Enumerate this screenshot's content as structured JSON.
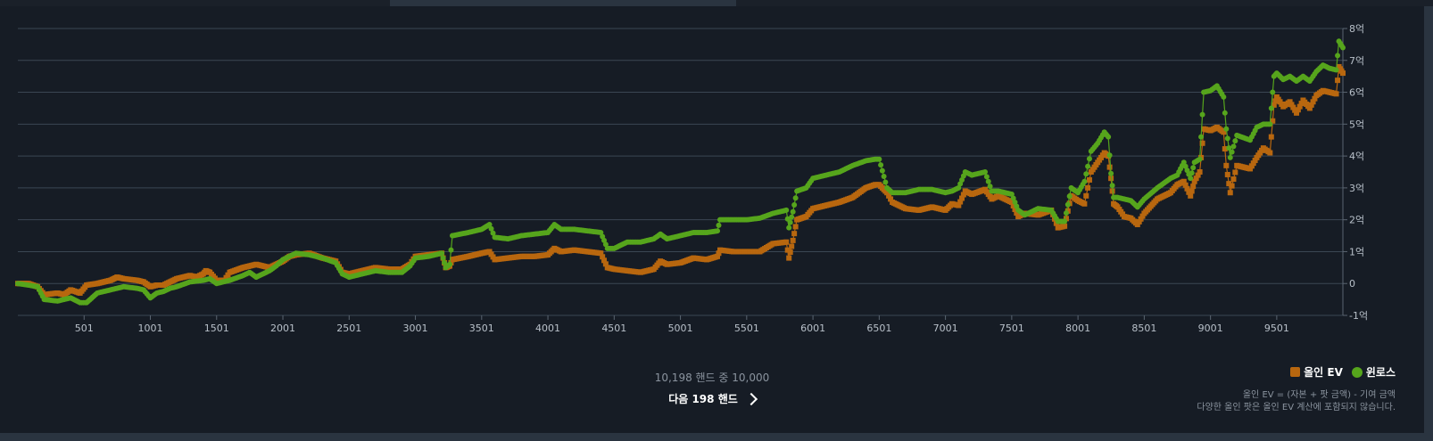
{
  "chart_data": {
    "type": "scatter",
    "x_ticks": [
      501,
      1001,
      1501,
      2001,
      2501,
      3001,
      3501,
      4001,
      4501,
      5001,
      5501,
      6001,
      6501,
      7001,
      7501,
      8001,
      8501,
      9001,
      9501
    ],
    "x_tick_labels": [
      "501",
      "1001",
      "1501",
      "2001",
      "2501",
      "3001",
      "3501",
      "4001",
      "4501",
      "5001",
      "5501",
      "6001",
      "6501",
      "7001",
      "7501",
      "8001",
      "8501",
      "9001",
      "9501"
    ],
    "xlim": [
      1,
      10000
    ],
    "y_ticks": [
      -1,
      0,
      1,
      2,
      3,
      4,
      5,
      6,
      7,
      8
    ],
    "y_tick_labels": [
      "-1억",
      "0",
      "1억",
      "2억",
      "3억",
      "4억",
      "5억",
      "6억",
      "7억",
      "8억"
    ],
    "ylim": [
      -1,
      8
    ],
    "grid": true,
    "legend_position": "bottom-right",
    "series": [
      {
        "name": "올인 EV",
        "marker": "square",
        "color": "#b8670f",
        "points": [
          [
            1,
            0
          ],
          [
            80,
            0
          ],
          [
            150,
            -0.1
          ],
          [
            200,
            -0.35
          ],
          [
            300,
            -0.3
          ],
          [
            350,
            -0.35
          ],
          [
            400,
            -0.2
          ],
          [
            470,
            -0.3
          ],
          [
            520,
            -0.05
          ],
          [
            600,
            0
          ],
          [
            700,
            0.1
          ],
          [
            750,
            0.2
          ],
          [
            800,
            0.15
          ],
          [
            900,
            0.1
          ],
          [
            950,
            0.05
          ],
          [
            1001,
            -0.1
          ],
          [
            1050,
            -0.05
          ],
          [
            1100,
            -0.05
          ],
          [
            1150,
            0.05
          ],
          [
            1200,
            0.15
          ],
          [
            1300,
            0.25
          ],
          [
            1350,
            0.2
          ],
          [
            1400,
            0.3
          ],
          [
            1420,
            0.4
          ],
          [
            1450,
            0.35
          ],
          [
            1501,
            0.1
          ],
          [
            1560,
            0.1
          ],
          [
            1600,
            0.35
          ],
          [
            1700,
            0.5
          ],
          [
            1800,
            0.6
          ],
          [
            1900,
            0.5
          ],
          [
            1950,
            0.6
          ],
          [
            2001,
            0.7
          ],
          [
            2050,
            0.85
          ],
          [
            2100,
            0.9
          ],
          [
            2200,
            0.95
          ],
          [
            2300,
            0.8
          ],
          [
            2400,
            0.7
          ],
          [
            2450,
            0.35
          ],
          [
            2501,
            0.3
          ],
          [
            2600,
            0.4
          ],
          [
            2700,
            0.5
          ],
          [
            2800,
            0.45
          ],
          [
            2900,
            0.45
          ],
          [
            2960,
            0.6
          ],
          [
            3001,
            0.85
          ],
          [
            3100,
            0.9
          ],
          [
            3200,
            0.95
          ],
          [
            3230,
            0.5
          ],
          [
            3260,
            0.55
          ],
          [
            3280,
            0.75
          ],
          [
            3400,
            0.85
          ],
          [
            3501,
            0.95
          ],
          [
            3560,
            1
          ],
          [
            3600,
            0.75
          ],
          [
            3700,
            0.8
          ],
          [
            3800,
            0.85
          ],
          [
            3900,
            0.85
          ],
          [
            4001,
            0.9
          ],
          [
            4050,
            1.1
          ],
          [
            4100,
            1
          ],
          [
            4200,
            1.05
          ],
          [
            4300,
            1.0
          ],
          [
            4400,
            0.95
          ],
          [
            4450,
            0.5
          ],
          [
            4501,
            0.45
          ],
          [
            4600,
            0.4
          ],
          [
            4700,
            0.35
          ],
          [
            4800,
            0.45
          ],
          [
            4850,
            0.7
          ],
          [
            4900,
            0.6
          ],
          [
            5001,
            0.65
          ],
          [
            5100,
            0.8
          ],
          [
            5200,
            0.75
          ],
          [
            5280,
            0.85
          ],
          [
            5300,
            1.05
          ],
          [
            5400,
            1.0
          ],
          [
            5501,
            1.0
          ],
          [
            5600,
            1.0
          ],
          [
            5700,
            1.25
          ],
          [
            5800,
            1.3
          ],
          [
            5820,
            0.8
          ],
          [
            5850,
            1.35
          ],
          [
            5880,
            2.0
          ],
          [
            5950,
            2.1
          ],
          [
            6001,
            2.35
          ],
          [
            6100,
            2.45
          ],
          [
            6200,
            2.55
          ],
          [
            6300,
            2.7
          ],
          [
            6400,
            3.0
          ],
          [
            6470,
            3.1
          ],
          [
            6501,
            3.1
          ],
          [
            6560,
            2.85
          ],
          [
            6600,
            2.55
          ],
          [
            6700,
            2.35
          ],
          [
            6800,
            2.3
          ],
          [
            6900,
            2.4
          ],
          [
            7001,
            2.3
          ],
          [
            7050,
            2.5
          ],
          [
            7100,
            2.45
          ],
          [
            7150,
            2.9
          ],
          [
            7200,
            2.8
          ],
          [
            7300,
            2.95
          ],
          [
            7350,
            2.65
          ],
          [
            7400,
            2.75
          ],
          [
            7501,
            2.55
          ],
          [
            7550,
            2.1
          ],
          [
            7600,
            2.2
          ],
          [
            7700,
            2.15
          ],
          [
            7800,
            2.3
          ],
          [
            7850,
            1.75
          ],
          [
            7900,
            1.8
          ],
          [
            7950,
            2.75
          ],
          [
            8001,
            2.6
          ],
          [
            8050,
            2.5
          ],
          [
            8100,
            3.5
          ],
          [
            8150,
            3.8
          ],
          [
            8200,
            4.1
          ],
          [
            8230,
            4.0
          ],
          [
            8250,
            3.3
          ],
          [
            8270,
            2.5
          ],
          [
            8300,
            2.4
          ],
          [
            8350,
            2.1
          ],
          [
            8400,
            2.05
          ],
          [
            8450,
            1.85
          ],
          [
            8501,
            2.2
          ],
          [
            8600,
            2.65
          ],
          [
            8700,
            2.85
          ],
          [
            8750,
            3.1
          ],
          [
            8800,
            3.2
          ],
          [
            8850,
            2.75
          ],
          [
            8880,
            3.2
          ],
          [
            8920,
            3.5
          ],
          [
            8950,
            4.85
          ],
          [
            9001,
            4.8
          ],
          [
            9050,
            4.9
          ],
          [
            9100,
            4.75
          ],
          [
            9120,
            3.7
          ],
          [
            9150,
            2.85
          ],
          [
            9200,
            3.7
          ],
          [
            9300,
            3.6
          ],
          [
            9350,
            3.95
          ],
          [
            9400,
            4.25
          ],
          [
            9450,
            4.1
          ],
          [
            9480,
            5.6
          ],
          [
            9501,
            5.85
          ],
          [
            9550,
            5.55
          ],
          [
            9600,
            5.7
          ],
          [
            9650,
            5.35
          ],
          [
            9700,
            5.75
          ],
          [
            9750,
            5.5
          ],
          [
            9800,
            5.9
          ],
          [
            9850,
            6.05
          ],
          [
            9900,
            6.0
          ],
          [
            9950,
            5.95
          ],
          [
            9970,
            6.8
          ],
          [
            10000,
            6.6
          ]
        ]
      },
      {
        "name": "윈로스",
        "marker": "circle",
        "color": "#56a51c",
        "points": [
          [
            1,
            0
          ],
          [
            80,
            -0.05
          ],
          [
            150,
            -0.1
          ],
          [
            200,
            -0.5
          ],
          [
            300,
            -0.55
          ],
          [
            400,
            -0.45
          ],
          [
            470,
            -0.6
          ],
          [
            520,
            -0.6
          ],
          [
            600,
            -0.3
          ],
          [
            700,
            -0.2
          ],
          [
            800,
            -0.1
          ],
          [
            900,
            -0.15
          ],
          [
            950,
            -0.2
          ],
          [
            1001,
            -0.45
          ],
          [
            1050,
            -0.3
          ],
          [
            1100,
            -0.25
          ],
          [
            1150,
            -0.15
          ],
          [
            1200,
            -0.1
          ],
          [
            1300,
            0.05
          ],
          [
            1400,
            0.1
          ],
          [
            1450,
            0.15
          ],
          [
            1501,
            0.0
          ],
          [
            1600,
            0.1
          ],
          [
            1700,
            0.25
          ],
          [
            1750,
            0.35
          ],
          [
            1800,
            0.2
          ],
          [
            1900,
            0.4
          ],
          [
            1950,
            0.55
          ],
          [
            2001,
            0.75
          ],
          [
            2050,
            0.85
          ],
          [
            2100,
            0.95
          ],
          [
            2200,
            0.9
          ],
          [
            2300,
            0.8
          ],
          [
            2400,
            0.65
          ],
          [
            2450,
            0.3
          ],
          [
            2501,
            0.2
          ],
          [
            2600,
            0.3
          ],
          [
            2700,
            0.4
          ],
          [
            2800,
            0.35
          ],
          [
            2900,
            0.35
          ],
          [
            2960,
            0.55
          ],
          [
            3001,
            0.8
          ],
          [
            3100,
            0.85
          ],
          [
            3200,
            0.95
          ],
          [
            3230,
            0.5
          ],
          [
            3260,
            0.6
          ],
          [
            3280,
            1.5
          ],
          [
            3400,
            1.6
          ],
          [
            3501,
            1.7
          ],
          [
            3560,
            1.85
          ],
          [
            3600,
            1.45
          ],
          [
            3700,
            1.4
          ],
          [
            3800,
            1.5
          ],
          [
            3900,
            1.55
          ],
          [
            4001,
            1.6
          ],
          [
            4050,
            1.85
          ],
          [
            4100,
            1.7
          ],
          [
            4200,
            1.7
          ],
          [
            4300,
            1.65
          ],
          [
            4400,
            1.6
          ],
          [
            4450,
            1.1
          ],
          [
            4501,
            1.1
          ],
          [
            4600,
            1.3
          ],
          [
            4700,
            1.3
          ],
          [
            4800,
            1.4
          ],
          [
            4850,
            1.55
          ],
          [
            4900,
            1.4
          ],
          [
            5001,
            1.5
          ],
          [
            5100,
            1.6
          ],
          [
            5200,
            1.6
          ],
          [
            5280,
            1.65
          ],
          [
            5300,
            2.0
          ],
          [
            5400,
            2.0
          ],
          [
            5501,
            2.0
          ],
          [
            5600,
            2.05
          ],
          [
            5700,
            2.2
          ],
          [
            5800,
            2.3
          ],
          [
            5820,
            1.75
          ],
          [
            5850,
            2.25
          ],
          [
            5880,
            2.9
          ],
          [
            5950,
            3.0
          ],
          [
            6001,
            3.3
          ],
          [
            6100,
            3.4
          ],
          [
            6200,
            3.5
          ],
          [
            6300,
            3.7
          ],
          [
            6400,
            3.85
          ],
          [
            6470,
            3.9
          ],
          [
            6501,
            3.9
          ],
          [
            6560,
            3.0
          ],
          [
            6600,
            2.85
          ],
          [
            6700,
            2.85
          ],
          [
            6800,
            2.95
          ],
          [
            6900,
            2.95
          ],
          [
            7001,
            2.85
          ],
          [
            7050,
            2.9
          ],
          [
            7100,
            3.0
          ],
          [
            7150,
            3.5
          ],
          [
            7200,
            3.4
          ],
          [
            7300,
            3.5
          ],
          [
            7350,
            2.9
          ],
          [
            7400,
            2.9
          ],
          [
            7501,
            2.8
          ],
          [
            7550,
            2.3
          ],
          [
            7600,
            2.15
          ],
          [
            7700,
            2.35
          ],
          [
            7800,
            2.3
          ],
          [
            7850,
            1.95
          ],
          [
            7900,
            1.95
          ],
          [
            7950,
            3.0
          ],
          [
            8001,
            2.85
          ],
          [
            8050,
            3.2
          ],
          [
            8100,
            4.15
          ],
          [
            8150,
            4.4
          ],
          [
            8200,
            4.75
          ],
          [
            8230,
            4.6
          ],
          [
            8250,
            3.45
          ],
          [
            8270,
            2.7
          ],
          [
            8300,
            2.7
          ],
          [
            8350,
            2.65
          ],
          [
            8400,
            2.6
          ],
          [
            8450,
            2.4
          ],
          [
            8501,
            2.65
          ],
          [
            8600,
            3.0
          ],
          [
            8700,
            3.3
          ],
          [
            8750,
            3.4
          ],
          [
            8800,
            3.8
          ],
          [
            8850,
            3.3
          ],
          [
            8880,
            3.8
          ],
          [
            8920,
            3.9
          ],
          [
            8950,
            6.0
          ],
          [
            9001,
            6.05
          ],
          [
            9050,
            6.2
          ],
          [
            9100,
            5.85
          ],
          [
            9120,
            4.85
          ],
          [
            9150,
            3.95
          ],
          [
            9200,
            4.65
          ],
          [
            9300,
            4.5
          ],
          [
            9350,
            4.9
          ],
          [
            9400,
            5.0
          ],
          [
            9450,
            5.0
          ],
          [
            9480,
            6.5
          ],
          [
            9501,
            6.6
          ],
          [
            9550,
            6.4
          ],
          [
            9600,
            6.5
          ],
          [
            9650,
            6.35
          ],
          [
            9700,
            6.5
          ],
          [
            9750,
            6.35
          ],
          [
            9800,
            6.65
          ],
          [
            9850,
            6.85
          ],
          [
            9900,
            6.75
          ],
          [
            9950,
            6.7
          ],
          [
            9970,
            7.6
          ],
          [
            10000,
            7.4
          ]
        ]
      }
    ]
  },
  "legend": {
    "allin_ev": "올인 EV",
    "winloss": "윈로스"
  },
  "hand_count": "10,198 핸드 중 10,000",
  "next_button_label": "다음 198 핸드",
  "note_line1": "올인 EV = (자본 + 팟 금액) - 기여 금액",
  "note_line2": "다양한 올인 팟은 올인 EV 계산에 포함되지 않습니다."
}
